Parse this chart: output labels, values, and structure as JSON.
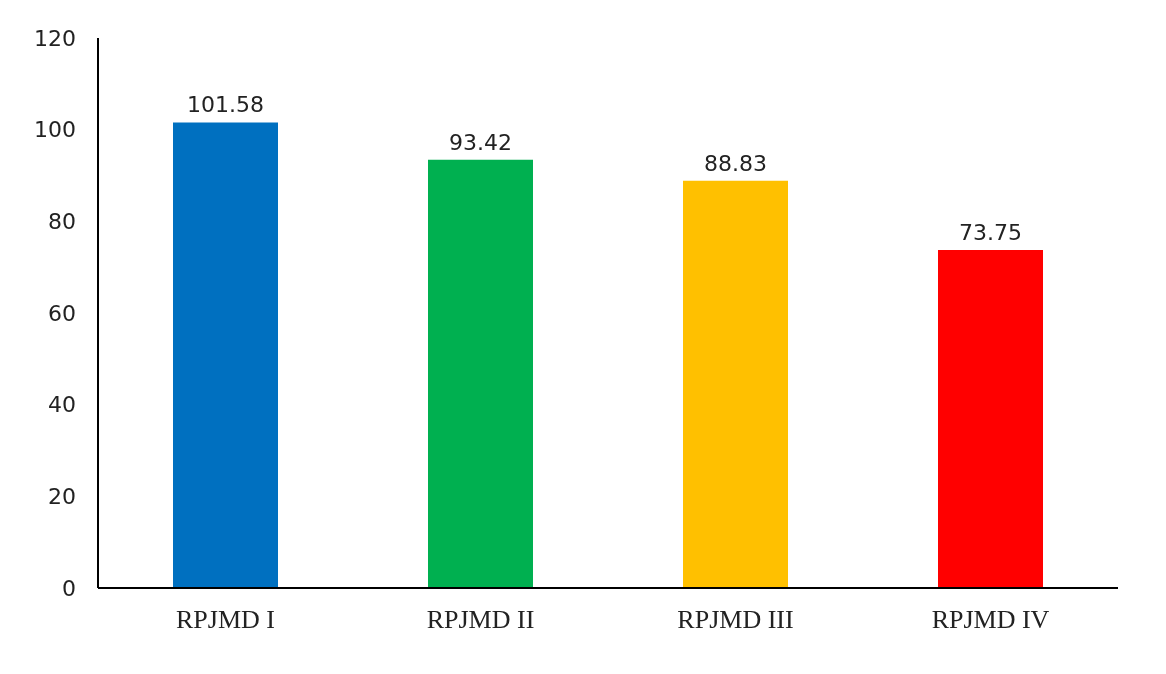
{
  "chart_data": {
    "type": "bar",
    "categories": [
      "RPJMD I",
      "RPJMD II",
      "RPJMD III",
      "RPJMD IV"
    ],
    "values": [
      101.58,
      93.42,
      88.83,
      73.75
    ],
    "colors": [
      "#0070c0",
      "#00b050",
      "#ffc000",
      "#ff0000"
    ],
    "ylim": [
      0,
      120
    ],
    "yticks": [
      0,
      20,
      40,
      60,
      80,
      100,
      120
    ],
    "grid": false,
    "data_labels": true
  }
}
